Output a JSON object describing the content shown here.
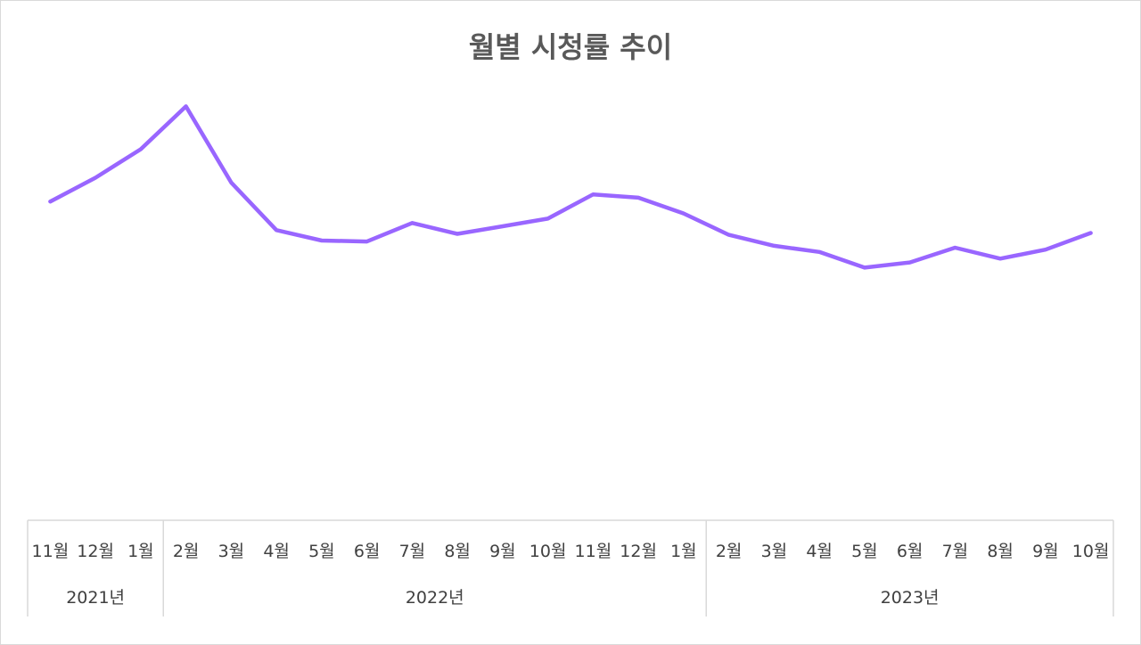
{
  "chart_data": {
    "type": "line",
    "title": "월별 시청률 추이",
    "xlabel": "",
    "ylabel": "",
    "ylim": [
      0,
      100
    ],
    "grid": false,
    "legend": "none",
    "color": "#9966ff",
    "categories": [
      "11월",
      "12월",
      "1월",
      "2월",
      "3월",
      "4월",
      "5월",
      "6월",
      "7월",
      "8월",
      "9월",
      "10월",
      "11월",
      "12월",
      "1월",
      "2월",
      "3월",
      "4월",
      "5월",
      "6월",
      "7월",
      "8월",
      "9월",
      "10월"
    ],
    "year_groups": [
      {
        "label": "2021년",
        "span": 3
      },
      {
        "label": "2022년",
        "span": 12
      },
      {
        "label": "2023년",
        "span": 9
      }
    ],
    "values": [
      67,
      72,
      78,
      87,
      71,
      61,
      58.8,
      58.6,
      62.5,
      60.2,
      61.8,
      63.4,
      68.5,
      67.8,
      64.5,
      60,
      57.7,
      56.4,
      53.1,
      54.2,
      57.3,
      55,
      56.9,
      60.4
    ]
  }
}
